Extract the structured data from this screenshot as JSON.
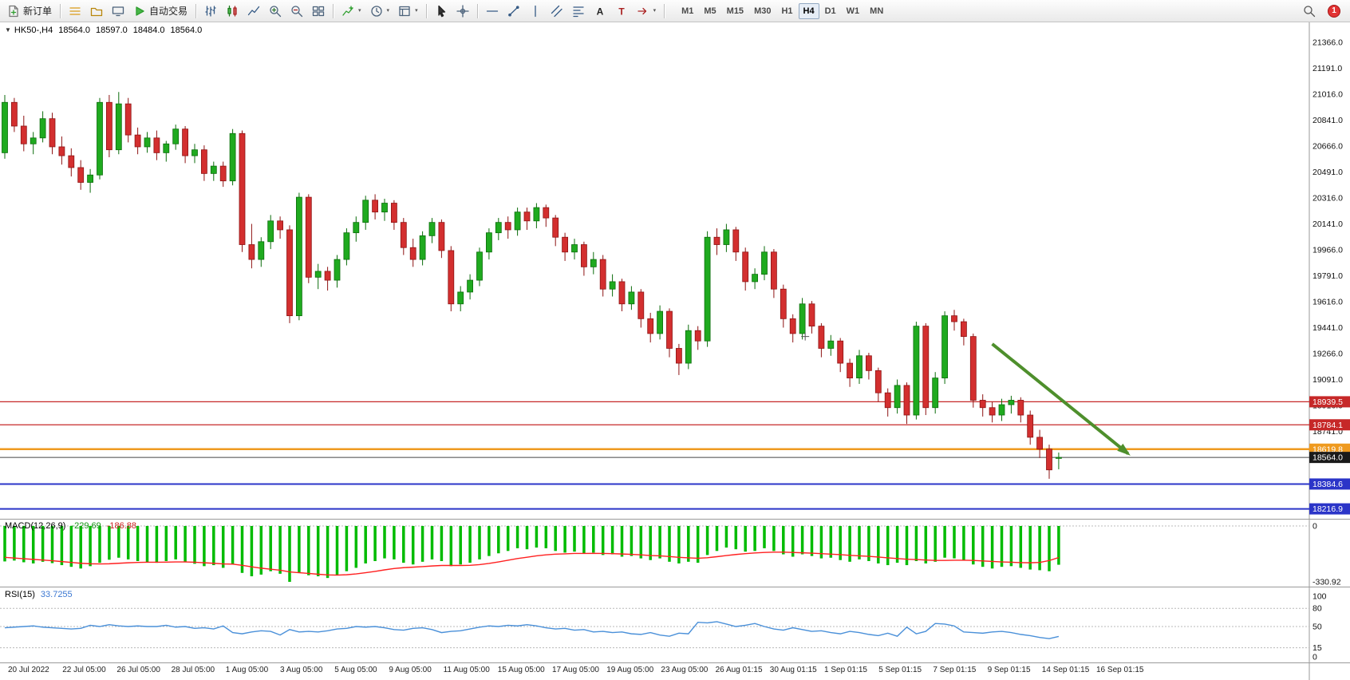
{
  "toolbar": {
    "items": [
      {
        "type": "button",
        "name": "new-order-button",
        "icon": "new-order-icon",
        "label": "新订单"
      },
      {
        "type": "sep"
      },
      {
        "type": "icon",
        "name": "market-watch-button",
        "icon": "market-watch-icon"
      },
      {
        "type": "icon",
        "name": "navigator-button",
        "icon": "navigator-icon"
      },
      {
        "type": "icon",
        "name": "terminal-button",
        "icon": "terminal-icon"
      },
      {
        "type": "button",
        "name": "auto-trading-button",
        "icon": "auto-trading-icon",
        "label": "自动交易"
      },
      {
        "type": "sep"
      },
      {
        "type": "icon",
        "name": "bar-chart-button",
        "icon": "bar-chart-icon"
      },
      {
        "type": "icon",
        "name": "candlestick-chart-button",
        "icon": "candlestick-icon"
      },
      {
        "type": "icon",
        "name": "line-chart-button",
        "icon": "line-chart-icon"
      },
      {
        "type": "icon",
        "name": "zoom-in-button",
        "icon": "zoom-in-icon"
      },
      {
        "type": "icon",
        "name": "zoom-out-button",
        "icon": "zoom-out-icon"
      },
      {
        "type": "icon",
        "name": "tile-windows-button",
        "icon": "tile-windows-icon"
      },
      {
        "type": "sep"
      },
      {
        "type": "icon",
        "name": "indicators-button",
        "icon": "indicators-icon",
        "dropdown": true
      },
      {
        "type": "icon",
        "name": "periods-button",
        "icon": "clock-icon",
        "dropdown": true
      },
      {
        "type": "icon",
        "name": "templates-button",
        "icon": "template-icon",
        "dropdown": true
      },
      {
        "type": "sep"
      },
      {
        "type": "icon",
        "name": "cursor-button",
        "icon": "cursor-icon"
      },
      {
        "type": "icon",
        "name": "crosshair-button",
        "icon": "crosshair-icon"
      },
      {
        "type": "sep"
      },
      {
        "type": "icon",
        "name": "horizontal-line-button",
        "icon": "hline-icon"
      },
      {
        "type": "icon",
        "name": "trendline-button",
        "icon": "trendline-icon"
      },
      {
        "type": "icon",
        "name": "vertical-line-button",
        "icon": "vline-icon"
      },
      {
        "type": "icon",
        "name": "channel-button",
        "icon": "channel-icon"
      },
      {
        "type": "icon",
        "name": "fibonacci-button",
        "icon": "fibo-icon"
      },
      {
        "type": "icon",
        "name": "text-button",
        "icon": "text-icon"
      },
      {
        "type": "icon",
        "name": "label-button",
        "icon": "label-icon"
      },
      {
        "type": "icon",
        "name": "arrows-button",
        "icon": "arrow-icon",
        "dropdown": true
      },
      {
        "type": "sep"
      }
    ],
    "timeframes": {
      "items": [
        "M1",
        "M5",
        "M15",
        "M30",
        "H1",
        "H4",
        "D1",
        "W1",
        "MN"
      ],
      "active": "H4"
    },
    "badge": {
      "text": "1",
      "color": "#e23333"
    }
  },
  "symbol_header": {
    "title": "HK50-,H4",
    "open": "18564.0",
    "high": "18597.0",
    "low": "18484.0",
    "close": "18564.0"
  },
  "price_axis": {
    "ticks": [
      "21366.0",
      "21191.0",
      "21016.0",
      "20841.0",
      "20666.0",
      "20491.0",
      "20316.0",
      "20141.0",
      "19966.0",
      "19791.0",
      "19616.0",
      "19441.0",
      "19266.0",
      "19091.0",
      "18916.0",
      "18741.0"
    ],
    "badges": [
      {
        "label": "18939.5",
        "price": 18939.5,
        "color": "#c62828"
      },
      {
        "label": "18784.1",
        "price": 18784.1,
        "color": "#c62828"
      },
      {
        "label": "18619.8",
        "price": 18619.8,
        "color": "#ef9a1f"
      },
      {
        "label": "18564.0",
        "price": 18564.0,
        "color": "#1a1a1a"
      },
      {
        "label": "18384.6",
        "price": 18384.6,
        "color": "#2b35c8"
      },
      {
        "label": "18216.9",
        "price": 18216.9,
        "color": "#2b35c8"
      }
    ]
  },
  "hlines": [
    {
      "price": 18939.5,
      "color": "#c62828",
      "width": 1.3
    },
    {
      "price": 18784.1,
      "color": "#c62828",
      "width": 1.3
    },
    {
      "price": 18619.8,
      "color": "#ef9a1f",
      "width": 2.5
    },
    {
      "price": 18564.0,
      "color": "#444444",
      "width": 1
    },
    {
      "price": 18384.6,
      "color": "#2b35c8",
      "width": 2
    },
    {
      "price": 18216.9,
      "color": "#2b35c8",
      "width": 2
    }
  ],
  "annotations": {
    "arrow": {
      "x1_bar": 104,
      "p1": 19330,
      "x2_bar": 118.3,
      "p2": 18590,
      "color": "#4e8f2c"
    },
    "cross_marker": {
      "bar": 84.3,
      "price": 19380,
      "color": "#555555"
    }
  },
  "chart_data": {
    "type": "candlestick",
    "title": "HK50-,H4",
    "up_color": "#1faa1f",
    "up_border": "#0c6d0c",
    "down_color": "#d32f2f",
    "down_border": "#8e1414",
    "price_range": [
      18150,
      21500
    ],
    "candles": [
      [
        20620,
        21010,
        20580,
        20960
      ],
      [
        20960,
        20990,
        20760,
        20800
      ],
      [
        20800,
        20870,
        20630,
        20680
      ],
      [
        20680,
        20760,
        20610,
        20720
      ],
      [
        20720,
        20900,
        20690,
        20850
      ],
      [
        20850,
        20890,
        20610,
        20660
      ],
      [
        20660,
        20730,
        20540,
        20600
      ],
      [
        20600,
        20650,
        20460,
        20520
      ],
      [
        20520,
        20570,
        20370,
        20420
      ],
      [
        20420,
        20510,
        20350,
        20470
      ],
      [
        20470,
        20990,
        20440,
        20960
      ],
      [
        20960,
        21010,
        20590,
        20640
      ],
      [
        20640,
        21030,
        20610,
        20950
      ],
      [
        20950,
        20990,
        20690,
        20740
      ],
      [
        20740,
        20790,
        20610,
        20660
      ],
      [
        20660,
        20760,
        20620,
        20720
      ],
      [
        20720,
        20770,
        20570,
        20620
      ],
      [
        20620,
        20700,
        20560,
        20680
      ],
      [
        20680,
        20810,
        20640,
        20780
      ],
      [
        20780,
        20800,
        20550,
        20600
      ],
      [
        20600,
        20680,
        20550,
        20640
      ],
      [
        20640,
        20670,
        20430,
        20480
      ],
      [
        20480,
        20560,
        20430,
        20530
      ],
      [
        20530,
        20560,
        20390,
        20430
      ],
      [
        20430,
        20780,
        20400,
        20750
      ],
      [
        20750,
        20770,
        19950,
        20000
      ],
      [
        20000,
        20140,
        19840,
        19900
      ],
      [
        19900,
        20050,
        19850,
        20020
      ],
      [
        20020,
        20200,
        19970,
        20160
      ],
      [
        20160,
        20190,
        20040,
        20100
      ],
      [
        20100,
        20130,
        19470,
        19520
      ],
      [
        19520,
        20350,
        19490,
        20320
      ],
      [
        20320,
        20340,
        19740,
        19780
      ],
      [
        19780,
        19870,
        19700,
        19820
      ],
      [
        19820,
        19850,
        19690,
        19760
      ],
      [
        19760,
        19930,
        19710,
        19900
      ],
      [
        19900,
        20110,
        19860,
        20080
      ],
      [
        20080,
        20190,
        20020,
        20150
      ],
      [
        20150,
        20330,
        20100,
        20300
      ],
      [
        20300,
        20340,
        20170,
        20220
      ],
      [
        20220,
        20310,
        20160,
        20280
      ],
      [
        20280,
        20300,
        20100,
        20150
      ],
      [
        20150,
        20180,
        19930,
        19980
      ],
      [
        19980,
        20040,
        19850,
        19900
      ],
      [
        19900,
        20090,
        19860,
        20060
      ],
      [
        20060,
        20180,
        20010,
        20150
      ],
      [
        20150,
        20170,
        19910,
        19960
      ],
      [
        19960,
        19990,
        19550,
        19600
      ],
      [
        19600,
        19720,
        19550,
        19680
      ],
      [
        19680,
        19800,
        19630,
        19760
      ],
      [
        19760,
        19980,
        19720,
        19950
      ],
      [
        19950,
        20110,
        19900,
        20080
      ],
      [
        20080,
        20180,
        20030,
        20150
      ],
      [
        20150,
        20190,
        20040,
        20100
      ],
      [
        20100,
        20250,
        20060,
        20220
      ],
      [
        20220,
        20250,
        20100,
        20160
      ],
      [
        20160,
        20280,
        20110,
        20250
      ],
      [
        20250,
        20270,
        20120,
        20180
      ],
      [
        20180,
        20200,
        19990,
        20050
      ],
      [
        20050,
        20080,
        19890,
        19950
      ],
      [
        19950,
        20040,
        19900,
        20000
      ],
      [
        20000,
        20020,
        19790,
        19850
      ],
      [
        19850,
        19950,
        19800,
        19900
      ],
      [
        19900,
        19930,
        19650,
        19700
      ],
      [
        19700,
        19800,
        19650,
        19750
      ],
      [
        19750,
        19770,
        19550,
        19600
      ],
      [
        19600,
        19720,
        19560,
        19680
      ],
      [
        19680,
        19700,
        19440,
        19500
      ],
      [
        19500,
        19540,
        19340,
        19400
      ],
      [
        19400,
        19590,
        19360,
        19550
      ],
      [
        19550,
        19570,
        19240,
        19300
      ],
      [
        19300,
        19330,
        19120,
        19200
      ],
      [
        19200,
        19460,
        19160,
        19420
      ],
      [
        19420,
        19450,
        19290,
        19350
      ],
      [
        19350,
        20090,
        19310,
        20050
      ],
      [
        20050,
        20110,
        19930,
        20000
      ],
      [
        20000,
        20140,
        19950,
        20100
      ],
      [
        20100,
        20120,
        19890,
        19950
      ],
      [
        19950,
        19980,
        19690,
        19750
      ],
      [
        19750,
        19840,
        19700,
        19800
      ],
      [
        19800,
        19990,
        19760,
        19950
      ],
      [
        19950,
        19970,
        19640,
        19700
      ],
      [
        19700,
        19730,
        19440,
        19500
      ],
      [
        19500,
        19530,
        19340,
        19400
      ],
      [
        19400,
        19640,
        19360,
        19600
      ],
      [
        19600,
        19620,
        19400,
        19450
      ],
      [
        19450,
        19470,
        19240,
        19300
      ],
      [
        19300,
        19390,
        19250,
        19350
      ],
      [
        19350,
        19370,
        19140,
        19200
      ],
      [
        19200,
        19230,
        19040,
        19100
      ],
      [
        19100,
        19290,
        19060,
        19250
      ],
      [
        19250,
        19270,
        19090,
        19150
      ],
      [
        19150,
        19170,
        18940,
        19000
      ],
      [
        19000,
        19030,
        18840,
        18900
      ],
      [
        18900,
        19090,
        18860,
        19050
      ],
      [
        19050,
        19070,
        18790,
        18850
      ],
      [
        18850,
        19480,
        18820,
        19450
      ],
      [
        19450,
        19470,
        18850,
        18900
      ],
      [
        18900,
        19140,
        18860,
        19100
      ],
      [
        19100,
        19550,
        19060,
        19520
      ],
      [
        19520,
        19560,
        19420,
        19480
      ],
      [
        19480,
        19500,
        19320,
        19380
      ],
      [
        19380,
        19400,
        18900,
        18950
      ],
      [
        18950,
        18990,
        18840,
        18900
      ],
      [
        18900,
        18940,
        18800,
        18850
      ],
      [
        18850,
        18960,
        18810,
        18920
      ],
      [
        18920,
        18980,
        18860,
        18950
      ],
      [
        18950,
        18970,
        18800,
        18850
      ],
      [
        18850,
        18880,
        18650,
        18700
      ],
      [
        18700,
        18750,
        18560,
        18620
      ],
      [
        18620,
        18650,
        18420,
        18480
      ],
      [
        18564,
        18597,
        18484,
        18564
      ]
    ]
  },
  "macd": {
    "label": "MACD(12,26,9)",
    "main_value": "-229.69",
    "signal_value": "-186.88",
    "axis_top": "0",
    "axis_bottom": "-330.92",
    "max_abs": 330.92,
    "hist_color": "#00bb00",
    "signal_color": "#ff2020",
    "hist": [
      -210,
      -205,
      -215,
      -222,
      -212,
      -220,
      -232,
      -242,
      -252,
      -238,
      -218,
      -200,
      -188,
      -198,
      -208,
      -214,
      -218,
      -208,
      -198,
      -214,
      -224,
      -238,
      -232,
      -248,
      -228,
      -278,
      -298,
      -288,
      -268,
      -283,
      -331,
      -278,
      -292,
      -298,
      -308,
      -292,
      -268,
      -248,
      -222,
      -208,
      -192,
      -198,
      -218,
      -228,
      -212,
      -198,
      -208,
      -238,
      -228,
      -218,
      -198,
      -178,
      -162,
      -148,
      -132,
      -138,
      -128,
      -132,
      -148,
      -158,
      -152,
      -162,
      -158,
      -172,
      -168,
      -182,
      -178,
      -192,
      -202,
      -192,
      -212,
      -222,
      -212,
      -218,
      -172,
      -148,
      -128,
      -138,
      -152,
      -148,
      -132,
      -148,
      -168,
      -182,
      -168,
      -178,
      -192,
      -188,
      -202,
      -212,
      -198,
      -208,
      -222,
      -232,
      -218,
      -232,
      -208,
      -222,
      -212,
      -188,
      -192,
      -202,
      -228,
      -242,
      -252,
      -242,
      -238,
      -248,
      -258,
      -262,
      -268,
      -229.69
    ],
    "signal": [
      -186,
      -190,
      -194,
      -198,
      -202,
      -206,
      -211,
      -216,
      -221,
      -224,
      -225,
      -224,
      -221,
      -218,
      -216,
      -215,
      -215,
      -214,
      -213,
      -213,
      -215,
      -218,
      -221,
      -225,
      -226,
      -233,
      -242,
      -250,
      -256,
      -262,
      -272,
      -277,
      -281,
      -286,
      -290,
      -291,
      -289,
      -284,
      -277,
      -269,
      -260,
      -252,
      -247,
      -244,
      -241,
      -237,
      -234,
      -234,
      -234,
      -233,
      -229,
      -222,
      -213,
      -203,
      -193,
      -185,
      -177,
      -171,
      -167,
      -165,
      -163,
      -163,
      -162,
      -163,
      -164,
      -166,
      -168,
      -171,
      -175,
      -177,
      -181,
      -186,
      -189,
      -191,
      -188,
      -182,
      -175,
      -169,
      -164,
      -160,
      -157,
      -155,
      -155,
      -157,
      -159,
      -161,
      -164,
      -167,
      -170,
      -174,
      -177,
      -180,
      -184,
      -189,
      -193,
      -197,
      -199,
      -202,
      -204,
      -204,
      -203,
      -203,
      -204,
      -207,
      -210,
      -213,
      -215,
      -217,
      -218,
      -216,
      -205,
      -186.88
    ]
  },
  "rsi": {
    "label": "RSI(15)",
    "value": "33.7255",
    "axis": [
      "100",
      "80",
      "50",
      "15",
      "0"
    ],
    "levels": [
      80,
      50,
      15
    ],
    "color": "#4a90d9",
    "values": [
      48,
      49,
      50,
      51,
      49,
      48,
      47,
      46,
      47,
      52,
      50,
      53,
      51,
      50,
      51,
      50,
      50,
      52,
      49,
      50,
      47,
      48,
      46,
      51,
      40,
      38,
      41,
      43,
      42,
      36,
      45,
      41,
      42,
      41,
      43,
      46,
      47,
      50,
      49,
      50,
      48,
      45,
      44,
      47,
      48,
      45,
      40,
      42,
      43,
      46,
      49,
      51,
      50,
      52,
      51,
      53,
      51,
      48,
      46,
      47,
      44,
      45,
      41,
      42,
      40,
      41,
      38,
      37,
      40,
      36,
      34,
      39,
      38,
      57,
      56,
      58,
      54,
      50,
      52,
      55,
      50,
      46,
      44,
      48,
      45,
      42,
      43,
      40,
      38,
      42,
      40,
      37,
      35,
      39,
      34,
      49,
      38,
      42,
      55,
      54,
      51,
      41,
      40,
      39,
      41,
      42,
      40,
      37,
      35,
      32,
      30,
      33.7
    ]
  },
  "time_axis": {
    "labels": [
      "20 Jul 2022",
      "22 Jul 05:00",
      "26 Jul 05:00",
      "28 Jul 05:00",
      "1 Aug 05:00",
      "3 Aug 05:00",
      "5 Aug 05:00",
      "9 Aug 05:00",
      "11 Aug 05:00",
      "15 Aug 05:00",
      "17 Aug 05:00",
      "19 Aug 05:00",
      "23 Aug 05:00",
      "26 Aug 01:15",
      "30 Aug 01:15",
      "1 Sep 01:15",
      "5 Sep 01:15",
      "7 Sep 01:15",
      "9 Sep 01:15",
      "14 Sep 01:15",
      "16 Sep 01:15"
    ]
  }
}
